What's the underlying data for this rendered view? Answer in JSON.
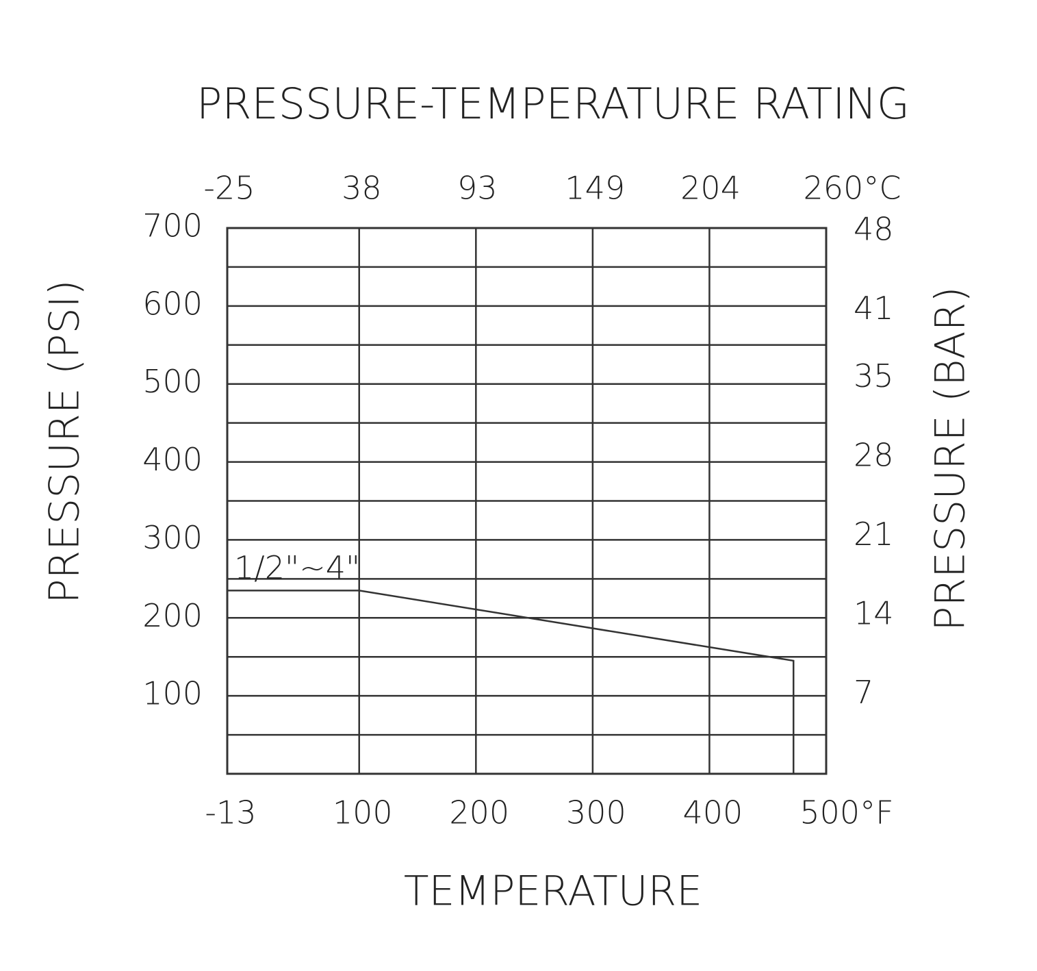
{
  "chart_data": {
    "type": "line",
    "title": "PRESSURE-TEMPERATURE RATING",
    "x_label": "TEMPERATURE",
    "y_label": "PRESSURE (PSI)",
    "y2_label": "PRESSURE (BAR)",
    "x": [
      -13,
      100,
      472,
      472
    ],
    "series": [
      {
        "name": "1/2\"~4\"",
        "color": "#333333",
        "values": [
          235,
          235,
          145,
          0
        ]
      }
    ],
    "xlim": [
      -13,
      500
    ],
    "xticks": [
      -13,
      100,
      200,
      300,
      400,
      {
        "value": 500,
        "label": "500°F"
      }
    ],
    "x2lim": [
      -25,
      260
    ],
    "x2ticks": [
      -25,
      38,
      93,
      149,
      204,
      {
        "value": 260,
        "label": "260°C"
      }
    ],
    "ylim": [
      0,
      700
    ],
    "yticks": [
      100,
      200,
      300,
      400,
      500,
      600,
      700
    ],
    "minor_yticks": [
      50,
      150,
      250,
      350,
      450,
      550,
      650
    ],
    "y2lim": [
      0,
      48.3
    ],
    "y2ticks": [
      7,
      14,
      21,
      28,
      35,
      41,
      48
    ],
    "grid": true
  }
}
